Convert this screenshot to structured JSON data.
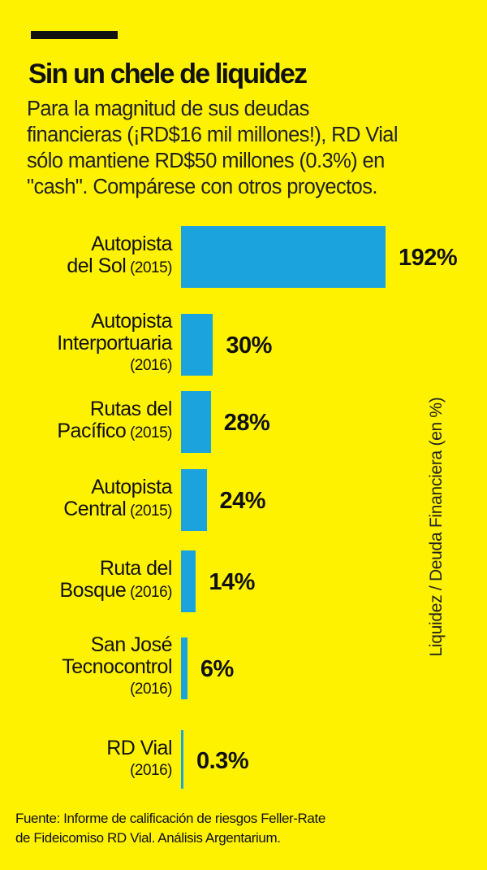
{
  "title": "Sin un chele de liquidez",
  "subtitle_lines": [
    "Para la magnitud de sus deudas",
    "financieras (¡RD$16 mil millones!), RD Vial",
    "sólo mantiene RD$50 millones (0.3%) en",
    "\"cash\". Compárese con otros proyectos."
  ],
  "source_lines": [
    "Fuente:  Informe de calificación de riesgos Feller-Rate",
    "de Fideicomiso RD Vial. Análisis Argentarium."
  ],
  "colors": {
    "background": "#FFF200",
    "bar": "#1BA3DD",
    "text": "#111111"
  },
  "chart_data": {
    "type": "bar",
    "orientation": "horizontal",
    "title": "Sin un chele de liquidez",
    "ylabel": "Liquidez / Deuda Financiera (en %)",
    "categories": [
      {
        "lines": [
          "Autopista",
          "del Sol"
        ],
        "year": "(2015)"
      },
      {
        "lines": [
          "Autopista",
          "Interportuaria"
        ],
        "year": "(2016)",
        "year_separate": true
      },
      {
        "lines": [
          "Rutas del",
          "Pacífico"
        ],
        "year": "(2015)"
      },
      {
        "lines": [
          "Autopista",
          "Central"
        ],
        "year": "(2015)"
      },
      {
        "lines": [
          "Ruta del",
          "Bosque"
        ],
        "year": "(2016)"
      },
      {
        "lines": [
          "San José",
          "Tecnocontrol"
        ],
        "year": "(2016)",
        "year_separate": true
      },
      {
        "lines": [
          "RD Vial"
        ],
        "year": "(2016)",
        "year_separate": true
      }
    ],
    "values": [
      192,
      30,
      28,
      24,
      14,
      6,
      0.3
    ],
    "value_labels": [
      "192%",
      "30%",
      "28%",
      "24%",
      "14%",
      "6%",
      "0.3%"
    ],
    "xlim": [
      0,
      192
    ],
    "grid": false,
    "legend": "none"
  }
}
